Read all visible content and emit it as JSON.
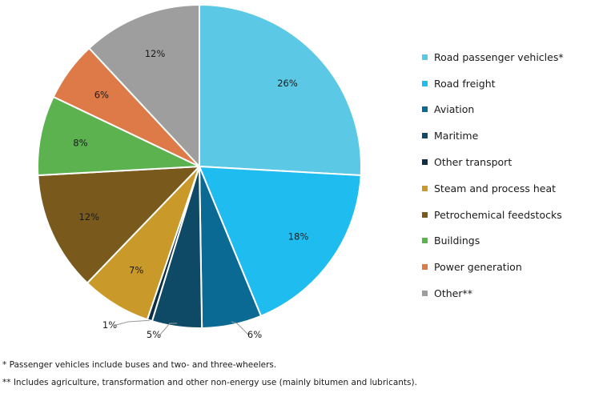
{
  "chart_data": {
    "type": "pie",
    "slices": [
      {
        "label": "Road passenger vehicles*",
        "value": 26,
        "data_label": "26%",
        "color": "#5BC8E5"
      },
      {
        "label": "Road freight",
        "value": 18,
        "data_label": "18%",
        "color": "#1FBCEF"
      },
      {
        "label": "Aviation",
        "value": 6,
        "data_label": "6%",
        "color": "#0A6A93"
      },
      {
        "label": "Maritime",
        "value": 5,
        "data_label": "5%",
        "color": "#0E4A66"
      },
      {
        "label": "Other transport",
        "value": 0.5,
        "data_label": "1%",
        "color": "#0B2E45"
      },
      {
        "label": "Steam and process heat",
        "value": 7,
        "data_label": "7%",
        "color": "#C99A2A"
      },
      {
        "label": "Petrochemical feedstocks",
        "value": 12,
        "data_label": "12%",
        "color": "#7A5A1C"
      },
      {
        "label": "Buildings",
        "value": 8,
        "data_label": "8%",
        "color": "#5BB24F"
      },
      {
        "label": "Power generation",
        "value": 6,
        "data_label": "6%",
        "color": "#DD7A48"
      },
      {
        "label": "Other**",
        "value": 12,
        "data_label": "12%",
        "color": "#9E9E9E"
      }
    ],
    "legend_position": "right"
  },
  "footnotes": [
    "* Passenger vehicles include buses and two- and three-wheelers.",
    "** Includes agriculture, transformation and other non-energy use (mainly bitumen and lubricants)."
  ]
}
